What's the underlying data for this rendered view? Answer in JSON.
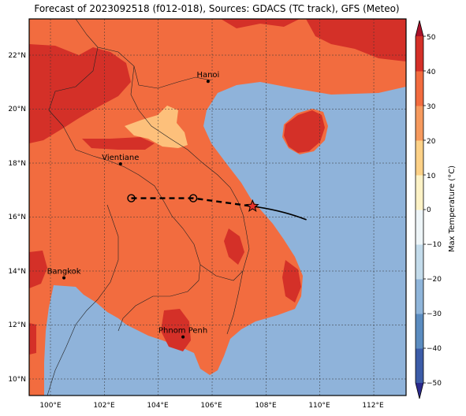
{
  "title": "Forecast of 2023092518 (f012-018), Sources: GDACS (TC track), GFS (Meteo)",
  "axes": {
    "lon_labels": [
      "100°E",
      "102°E",
      "104°E",
      "106°E",
      "108°E",
      "110°E",
      "112°E"
    ],
    "lat_labels": [
      "22°N",
      "20°N",
      "18°N",
      "16°N",
      "14°N",
      "12°N",
      "10°N"
    ]
  },
  "cities": [
    {
      "name": "Hanoi",
      "lon": 105.85,
      "lat": 21.03
    },
    {
      "name": "Vientiane",
      "lon": 102.6,
      "lat": 17.97
    },
    {
      "name": "Bangkok",
      "lon": 100.5,
      "lat": 13.75
    },
    {
      "name": "Phnom Penh",
      "lon": 104.92,
      "lat": 11.56
    }
  ],
  "colorbar": {
    "label": "Max Temperature (°C)",
    "ticks": [
      "50",
      "40",
      "30",
      "20",
      "10",
      "0",
      "−10",
      "−20",
      "−30",
      "−40",
      "−50"
    ],
    "min": -50,
    "max": 50,
    "colors": [
      "#2b2a8c",
      "#3c5ca8",
      "#5b8cc0",
      "#8fb5da",
      "#c3dbeb",
      "#eef5f8",
      "#fdf2c6",
      "#fdd187",
      "#f69a5e",
      "#f26c3f",
      "#d43028",
      "#a8112a"
    ]
  },
  "track": {
    "forecast_points": [
      {
        "lon": 103.0,
        "lat": 16.7
      },
      {
        "lon": 105.3,
        "lat": 16.7
      }
    ],
    "current_position": {
      "lon": 107.5,
      "lat": 16.4
    },
    "past_track_end": {
      "lon": 109.5,
      "lat": 15.9
    }
  },
  "colors": {
    "sea": "#8fb3da",
    "land": "#f26c3f",
    "hot": "#d43028",
    "cool": "#fdc07b",
    "storm_marker": "#e8312a"
  }
}
